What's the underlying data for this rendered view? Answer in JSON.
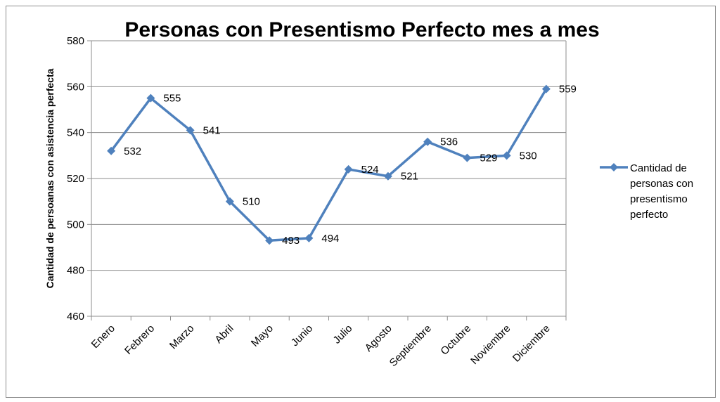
{
  "chart_data": {
    "type": "line",
    "title": "Personas con Presentismo Perfecto mes a mes",
    "xlabel": "",
    "ylabel": "Cantidad de persoanas con asistencia perfecta",
    "categories": [
      "Enero",
      "Febrero",
      "Marzo",
      "Abril",
      "Mayo",
      "Junio",
      "Julio",
      "Agosto",
      "Septiembre",
      "Octubre",
      "Noviembre",
      "Diciembre"
    ],
    "series": [
      {
        "name": "Cantidad de personas con presentismo perfecto",
        "values": [
          532,
          555,
          541,
          510,
          493,
          494,
          524,
          521,
          536,
          529,
          530,
          559
        ],
        "color": "#4f81bd",
        "marker": "diamond"
      }
    ],
    "data_labels": true,
    "ylim": [
      460,
      580
    ],
    "yticks": [
      460,
      480,
      500,
      520,
      540,
      560,
      580
    ],
    "grid": "horizontal",
    "legend_position": "right",
    "legend_lines": [
      "Cantidad de",
      "personas con",
      "presentismo",
      "perfecto"
    ]
  }
}
